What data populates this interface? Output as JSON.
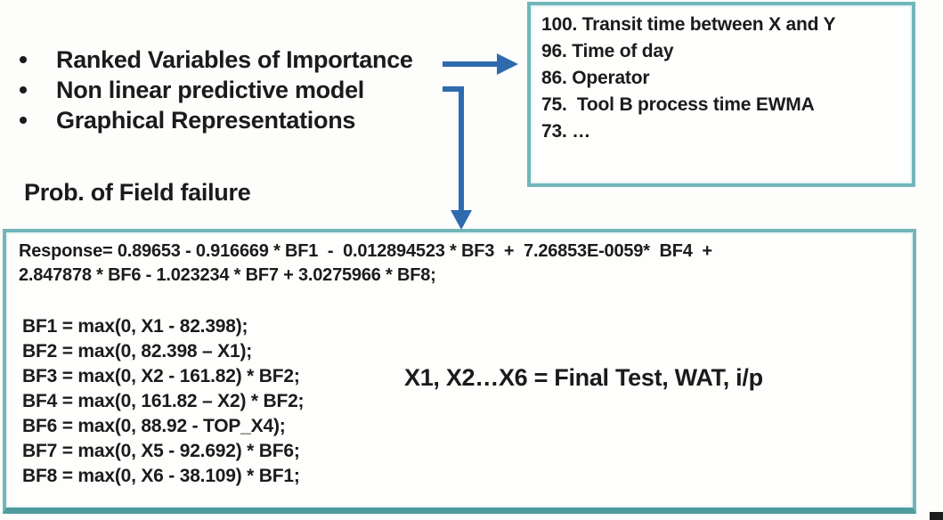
{
  "colors": {
    "box_border_teal": "#72b6ba",
    "box_border_teal_dark": "#4f9c9e",
    "arrow_blue": "#2e6bae",
    "text": "#1b1b1b"
  },
  "bullet_list": {
    "items": [
      "Ranked Variables of Importance",
      "Non linear predictive model",
      "Graphical Representations"
    ]
  },
  "labels": {
    "prob_of_field_failure": "Prob. of Field failure"
  },
  "ranked_variables_box": {
    "items": [
      "100. Transit time between X and Y",
      "96. Time of day",
      "86. Operator",
      "75.  Tool B process time EWMA",
      "73. …"
    ]
  },
  "model_box": {
    "response_equation_lines": [
      "Response= 0.89653 - 0.916669 * BF1  -  0.012894523 * BF3  +  7.26853E-0059*  BF4  +",
      "2.847878 * BF6 - 1.023234 * BF7 + 3.0275966 * BF8;"
    ],
    "basis_functions": [
      "BF1 = max(0, X1 - 82.398);",
      "BF2 = max(0, 82.398 – X1);",
      "BF3 = max(0, X2 - 161.82) * BF2;",
      "BF4 = max(0, 161.82 – X2) * BF2;",
      "BF6 = max(0, 88.92 - TOP_X4);",
      "BF7 = max(0, X5 - 92.692) * BF6;",
      "BF8 = max(0, X6 - 38.109) * BF1;"
    ],
    "variables_note": "X1, X2…X6 = Final Test, WAT, i/p"
  }
}
